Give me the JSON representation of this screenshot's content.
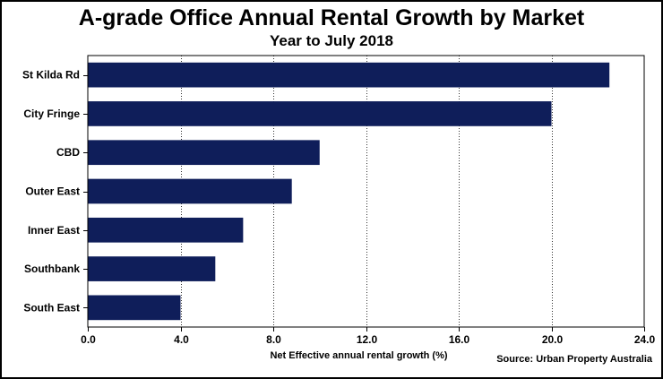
{
  "chart_data": {
    "type": "bar",
    "orientation": "horizontal",
    "title": "A-grade Office Annual Rental Growth by Market",
    "subtitle": "Year to July 2018",
    "xlabel": "Net Effective annual rental growth (%)",
    "ylabel": "",
    "source": "Source: Urban  Property Australia",
    "categories": [
      "St Kilda Rd",
      "City Fringe",
      "CBD",
      "Outer East",
      "Inner East",
      "Southbank",
      "South East"
    ],
    "values": [
      22.5,
      20.0,
      10.0,
      8.8,
      6.7,
      5.5,
      4.0
    ],
    "xlim": [
      0,
      24
    ],
    "xticks": [
      0,
      4,
      8,
      12,
      16,
      20,
      24
    ],
    "xtick_labels": [
      "0.0",
      "4.0",
      "8.0",
      "12.0",
      "16.0",
      "20.0",
      "24.0"
    ],
    "grid": "vertical-dashed",
    "bar_color": "#0f1e5a"
  }
}
